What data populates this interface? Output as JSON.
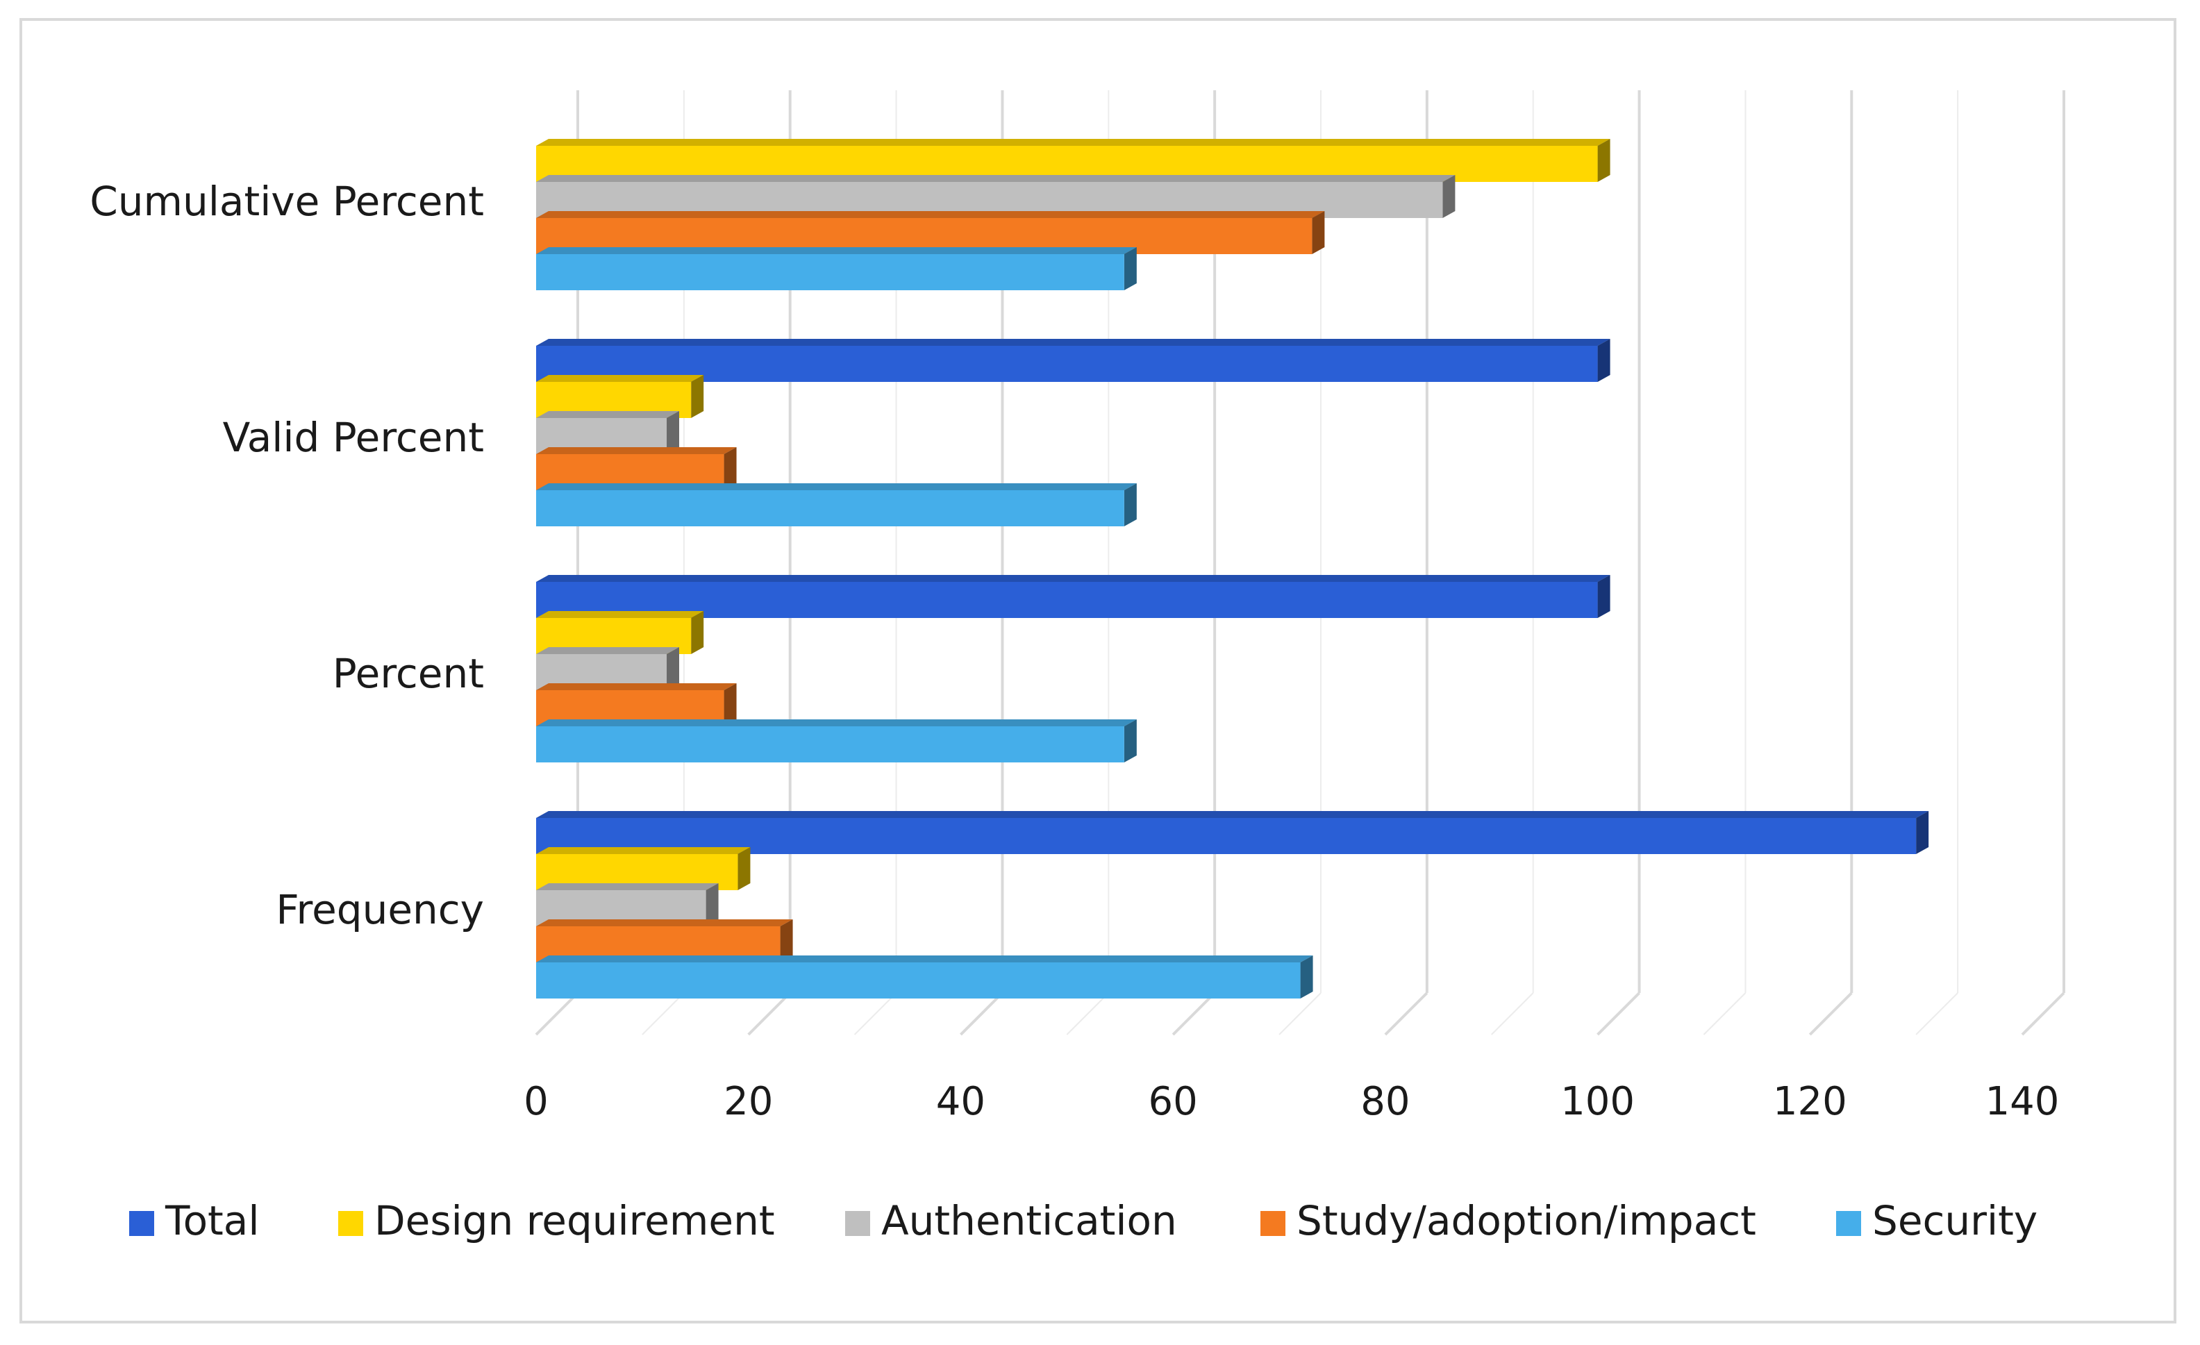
{
  "chart_data": {
    "type": "bar",
    "orientation": "horizontal",
    "style": "3d-clustered",
    "categories": [
      "Frequency",
      "Percent",
      "Valid Percent",
      "Cumulative Percent"
    ],
    "series": [
      {
        "name": "Total",
        "color": "#2a5fd6",
        "values": [
          130,
          100,
          100,
          null
        ]
      },
      {
        "name": "Design requirement",
        "color": "#ffd700",
        "values": [
          19,
          14.6,
          14.6,
          100
        ]
      },
      {
        "name": "Authentication",
        "color": "#bfbfbf",
        "values": [
          16,
          12.3,
          12.3,
          85.4
        ]
      },
      {
        "name": "Study/adoption/impact",
        "color": "#f47a20",
        "values": [
          23,
          17.7,
          17.7,
          73.1
        ]
      },
      {
        "name": "Security",
        "color": "#45aeea",
        "values": [
          72,
          55.4,
          55.4,
          55.4
        ]
      }
    ],
    "xlim": [
      0,
      140
    ],
    "x_ticks": [
      "0",
      "20",
      "40",
      "60",
      "80",
      "100",
      "120",
      "140"
    ],
    "legend_position": "bottom",
    "grid": true
  }
}
